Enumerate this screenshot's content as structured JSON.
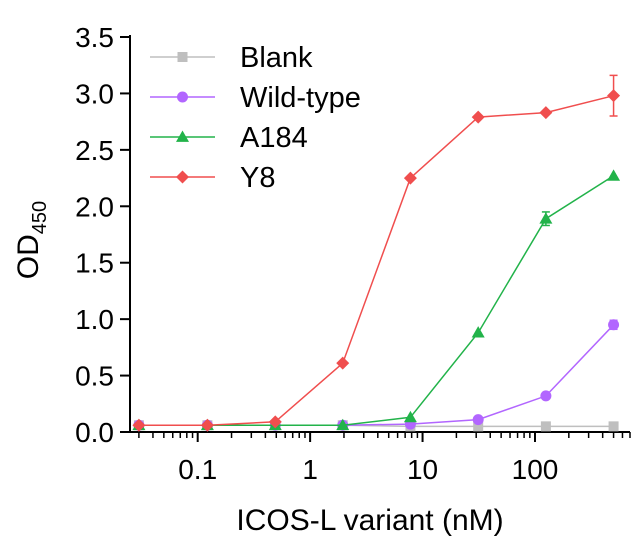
{
  "chart_data": {
    "type": "line",
    "title": "",
    "xlabel": "ICOS-L variant (nM)",
    "ylabel": "OD",
    "ylabel_subscript": "450",
    "xscale": "log",
    "xlim": [
      0.025,
      700
    ],
    "ylim": [
      0,
      3.5
    ],
    "x": [
      0.03,
      0.122,
      0.49,
      1.95,
      7.8,
      31.25,
      125,
      500
    ],
    "xticks": [
      0.1,
      1,
      10,
      100
    ],
    "xtick_labels": [
      "0.1",
      "1",
      "10",
      "100"
    ],
    "yticks": [
      0.0,
      0.5,
      1.0,
      1.5,
      2.0,
      2.5,
      3.0,
      3.5
    ],
    "ytick_labels": [
      "0.0",
      "0.5",
      "1.0",
      "1.5",
      "2.0",
      "2.5",
      "3.0",
      "3.5"
    ],
    "legend_position": "top-left",
    "series": [
      {
        "name": "Blank",
        "color": "#bfbfbf",
        "marker": "square",
        "values": [
          0.06,
          0.06,
          0.06,
          0.06,
          0.05,
          0.05,
          0.05,
          0.05
        ],
        "errors": [
          0,
          0,
          0,
          0,
          0,
          0,
          0,
          0
        ]
      },
      {
        "name": "Wild-type",
        "color": "#b266ff",
        "marker": "circle",
        "values": [
          0.06,
          0.06,
          0.06,
          0.06,
          0.07,
          0.11,
          0.32,
          0.95
        ],
        "errors": [
          0,
          0,
          0,
          0,
          0,
          0,
          0,
          0.04
        ]
      },
      {
        "name": "A184",
        "color": "#22b34a",
        "marker": "triangle",
        "values": [
          0.06,
          0.06,
          0.06,
          0.06,
          0.13,
          0.88,
          1.89,
          2.27
        ],
        "errors": [
          0,
          0,
          0,
          0,
          0,
          0,
          0.06,
          0
        ]
      },
      {
        "name": "Y8",
        "color": "#f04e4e",
        "marker": "diamond",
        "values": [
          0.06,
          0.06,
          0.09,
          0.61,
          2.25,
          2.79,
          2.83,
          2.98
        ],
        "errors": [
          0,
          0,
          0,
          0,
          0,
          0,
          0,
          0.18
        ]
      }
    ]
  }
}
